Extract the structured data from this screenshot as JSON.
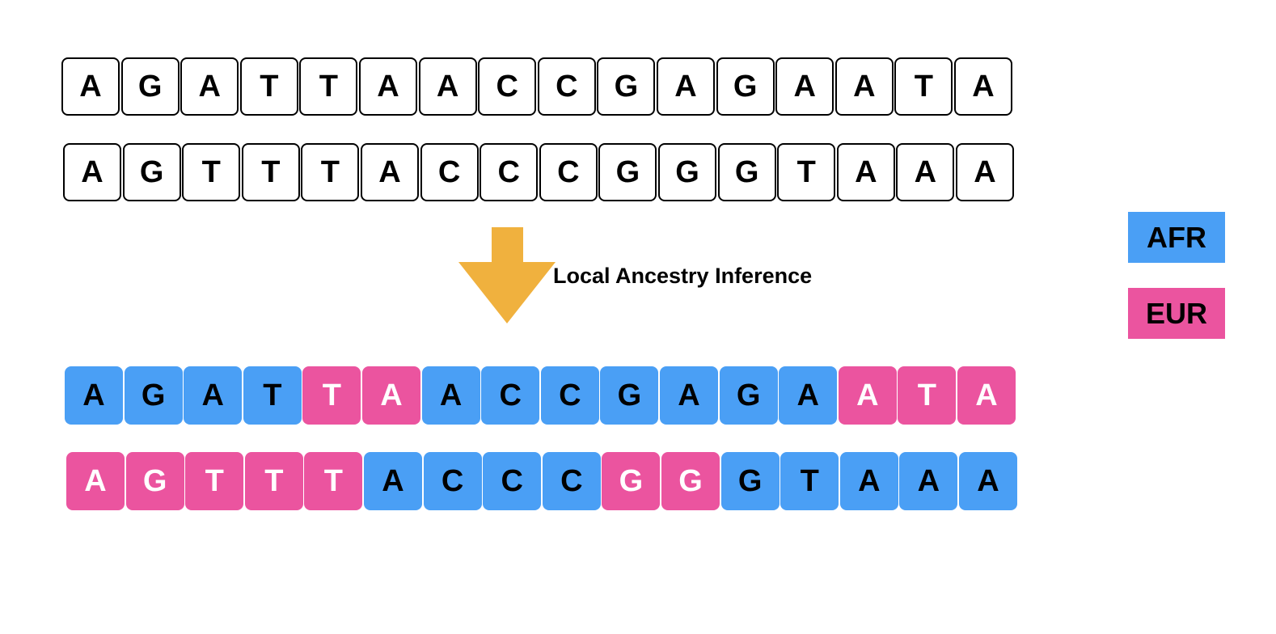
{
  "colors": {
    "afr": "#4a9ff5",
    "eur": "#eb549f",
    "arrow": "#f0b13e",
    "border": "#000000"
  },
  "input_sequences": [
    [
      "A",
      "G",
      "A",
      "T",
      "T",
      "A",
      "A",
      "C",
      "C",
      "G",
      "A",
      "G",
      "A",
      "A",
      "T",
      "A"
    ],
    [
      "A",
      "G",
      "T",
      "T",
      "T",
      "A",
      "C",
      "C",
      "C",
      "G",
      "G",
      "G",
      "T",
      "A",
      "A",
      "A"
    ]
  ],
  "arrow": {
    "icon": "down-arrow-icon",
    "label": "Local Ancestry Inference"
  },
  "output_sequences": [
    {
      "bases": [
        "A",
        "G",
        "A",
        "T",
        "T",
        "A",
        "A",
        "C",
        "C",
        "G",
        "A",
        "G",
        "A",
        "A",
        "T",
        "A"
      ],
      "ancestry": [
        "AFR",
        "AFR",
        "AFR",
        "AFR",
        "EUR",
        "EUR",
        "AFR",
        "AFR",
        "AFR",
        "AFR",
        "AFR",
        "AFR",
        "AFR",
        "EUR",
        "EUR",
        "EUR"
      ]
    },
    {
      "bases": [
        "A",
        "G",
        "T",
        "T",
        "T",
        "A",
        "C",
        "C",
        "C",
        "G",
        "G",
        "G",
        "T",
        "A",
        "A",
        "A"
      ],
      "ancestry": [
        "EUR",
        "EUR",
        "EUR",
        "EUR",
        "EUR",
        "AFR",
        "AFR",
        "AFR",
        "AFR",
        "EUR",
        "EUR",
        "AFR",
        "AFR",
        "AFR",
        "AFR",
        "AFR"
      ]
    }
  ],
  "legend": {
    "afr_label": "AFR",
    "eur_label": "EUR"
  }
}
